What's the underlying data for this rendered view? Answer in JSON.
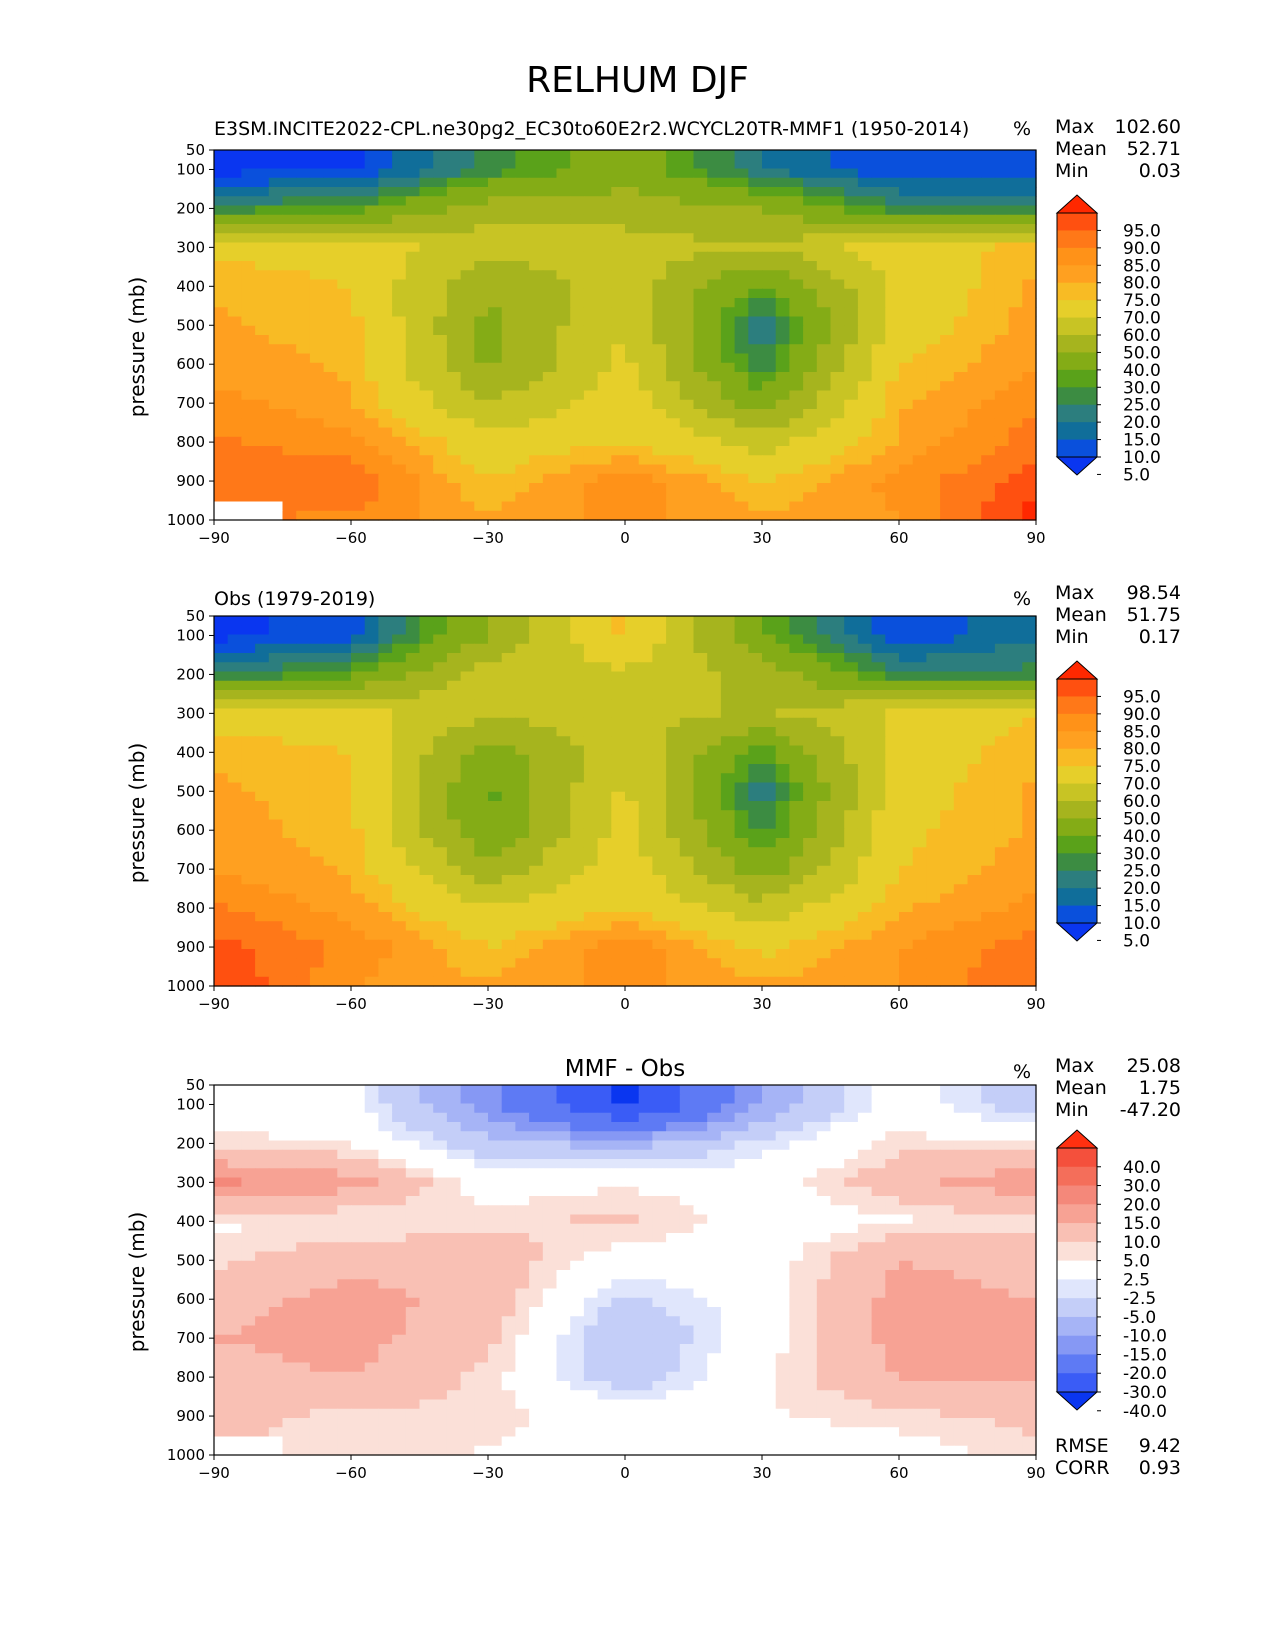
{
  "figure_title": "RELHUM DJF",
  "chart_data": [
    {
      "type": "heatmap",
      "title": "E3SM.INCITE2022-CPL.ne30pg2_EC30to60E2r2.WCYCL20TR-MMF1 (1950-2014)",
      "units": "%",
      "ylabel": "pressure (mb)",
      "xlabel": "",
      "xlim": [
        -90,
        90
      ],
      "ylim": [
        1000,
        50
      ],
      "xticks": [
        "−90",
        "−60",
        "−30",
        "0",
        "30",
        "60",
        "90"
      ],
      "yticks": [
        "50",
        "100",
        "200",
        "300",
        "400",
        "500",
        "600",
        "700",
        "800",
        "900",
        "1000"
      ],
      "stats": [
        {
          "label": "Max",
          "value": "102.60"
        },
        {
          "label": "Mean",
          "value": "52.71"
        },
        {
          "label": "Min",
          "value": "0.03"
        }
      ],
      "colorbar": {
        "ticks": [
          "95.0",
          "90.0",
          "85.0",
          "80.0",
          "75.0",
          "70.0",
          "60.0",
          "50.0",
          "40.0",
          "30.0",
          "25.0",
          "20.0",
          "15.0",
          "10.0",
          "5.0"
        ],
        "colors": [
          "#ff2800",
          "#ff5010",
          "#ff7818",
          "#ff9218",
          "#ffa020",
          "#f8bb24",
          "#e6cf2a",
          "#c8c424",
          "#a6b41e",
          "#84ac16",
          "#5aa21a",
          "#3c8c42",
          "#2c7e7e",
          "#106e9a",
          "#0a50dc",
          "#0a36f0"
        ]
      },
      "grid": {
        "x": [
          -90,
          -60,
          -30,
          0,
          30,
          60,
          90
        ],
        "p": [
          100,
          200,
          300,
          400,
          500,
          600,
          700,
          800,
          900,
          1000
        ],
        "values": [
          [
            3,
            4,
            22,
            35,
            15,
            5,
            5
          ],
          [
            22,
            26,
            45,
            45,
            40,
            22,
            22
          ],
          [
            68,
            66,
            55,
            55,
            50,
            66,
            72
          ],
          [
            74,
            70,
            40,
            56,
            28,
            62,
            76
          ],
          [
            76,
            72,
            38,
            60,
            16,
            64,
            78
          ],
          [
            78,
            74,
            38,
            62,
            20,
            70,
            80
          ],
          [
            82,
            76,
            50,
            66,
            34,
            74,
            84
          ],
          [
            86,
            82,
            64,
            70,
            56,
            76,
            88
          ],
          [
            88,
            90,
            70,
            84,
            70,
            82,
            92
          ],
          [
            null,
            84,
            76,
            82,
            76,
            80,
            98
          ]
        ]
      }
    },
    {
      "type": "heatmap",
      "title": "Obs (1979-2019)",
      "units": "%",
      "ylabel": "pressure (mb)",
      "xlabel": "",
      "xlim": [
        -90,
        90
      ],
      "ylim": [
        1000,
        50
      ],
      "xticks": [
        "−90",
        "−60",
        "−30",
        "0",
        "30",
        "60",
        "90"
      ],
      "yticks": [
        "50",
        "100",
        "200",
        "300",
        "400",
        "500",
        "600",
        "700",
        "800",
        "900",
        "1000"
      ],
      "stats": [
        {
          "label": "Max",
          "value": "98.54"
        },
        {
          "label": "Mean",
          "value": "51.75"
        },
        {
          "label": "Min",
          "value": "0.17"
        }
      ],
      "colorbar": {
        "ticks": [
          "95.0",
          "90.0",
          "85.0",
          "80.0",
          "75.0",
          "70.0",
          "60.0",
          "50.0",
          "40.0",
          "30.0",
          "25.0",
          "20.0",
          "15.0",
          "10.0",
          "5.0"
        ],
        "colors": [
          "#ff2800",
          "#ff5010",
          "#ff7818",
          "#ff9218",
          "#ffa020",
          "#f8bb24",
          "#e6cf2a",
          "#c8c424",
          "#a6b41e",
          "#84ac16",
          "#5aa21a",
          "#3c8c42",
          "#2c7e7e",
          "#106e9a",
          "#0a50dc",
          "#0a36f0"
        ]
      },
      "grid": {
        "x": [
          -90,
          -60,
          -30,
          0,
          30,
          60,
          90
        ],
        "p": [
          100,
          200,
          300,
          400,
          500,
          600,
          700,
          800,
          900,
          1000
        ],
        "values": [
          [
            3,
            8,
            40,
            72,
            30,
            6,
            14
          ],
          [
            18,
            28,
            55,
            58,
            46,
            20,
            22
          ],
          [
            66,
            64,
            52,
            55,
            48,
            62,
            70
          ],
          [
            74,
            70,
            34,
            58,
            26,
            64,
            74
          ],
          [
            76,
            72,
            28,
            62,
            16,
            66,
            76
          ],
          [
            78,
            72,
            30,
            64,
            22,
            68,
            76
          ],
          [
            80,
            74,
            44,
            66,
            34,
            70,
            78
          ],
          [
            86,
            78,
            60,
            70,
            54,
            74,
            82
          ],
          [
            92,
            84,
            70,
            84,
            68,
            80,
            88
          ],
          [
            96,
            80,
            76,
            82,
            76,
            80,
            90
          ]
        ]
      }
    },
    {
      "type": "heatmap",
      "title": "MMF - Obs",
      "units": "%",
      "ylabel": "pressure (mb)",
      "xlabel": "",
      "xlim": [
        -90,
        90
      ],
      "ylim": [
        1000,
        50
      ],
      "xticks": [
        "−90",
        "−60",
        "−30",
        "0",
        "30",
        "60",
        "90"
      ],
      "yticks": [
        "50",
        "100",
        "200",
        "300",
        "400",
        "500",
        "600",
        "700",
        "800",
        "900",
        "1000"
      ],
      "stats": [
        {
          "label": "Max",
          "value": "25.08"
        },
        {
          "label": "Mean",
          "value": "1.75"
        },
        {
          "label": "Min",
          "value": "-47.20"
        }
      ],
      "extra_stats": [
        {
          "label": "RMSE",
          "value": "9.42"
        },
        {
          "label": "CORR",
          "value": "0.93"
        }
      ],
      "colorbar": {
        "ticks": [
          "40.0",
          "30.0",
          "20.0",
          "15.0",
          "10.0",
          "5.0",
          "2.5",
          "-2.5",
          "-5.0",
          "-10.0",
          "-15.0",
          "-20.0",
          "-30.0",
          "-40.0"
        ],
        "colors": [
          "#ff3010",
          "#f4503c",
          "#f46e5a",
          "#f4887a",
          "#f7a294",
          "#f9c0b4",
          "#fbe0d8",
          "#ffffff",
          "#e0e6fc",
          "#c4cef8",
          "#a6b4f6",
          "#8698f4",
          "#5e7af4",
          "#3a5cf6",
          "#0a36f0"
        ]
      },
      "grid": {
        "x": [
          -90,
          -60,
          -30,
          0,
          30,
          60,
          90
        ],
        "p": [
          100,
          200,
          300,
          400,
          500,
          600,
          700,
          800,
          900,
          1000
        ],
        "values": [
          [
            0,
            -1,
            -18,
            -42,
            -14,
            0,
            -8
          ],
          [
            4,
            2,
            -8,
            -12,
            -4,
            4,
            2
          ],
          [
            16,
            12,
            0,
            2,
            0,
            8,
            14
          ],
          [
            2,
            2,
            4,
            6,
            0,
            2,
            4
          ],
          [
            4,
            8,
            8,
            0,
            0,
            10,
            8
          ],
          [
            8,
            12,
            8,
            -6,
            0,
            12,
            10
          ],
          [
            10,
            12,
            6,
            -10,
            0,
            12,
            10
          ],
          [
            8,
            10,
            4,
            -8,
            2,
            10,
            10
          ],
          [
            6,
            4,
            4,
            0,
            2,
            4,
            6
          ],
          [
            null,
            4,
            2,
            0,
            -1,
            0,
            4
          ]
        ]
      }
    }
  ]
}
